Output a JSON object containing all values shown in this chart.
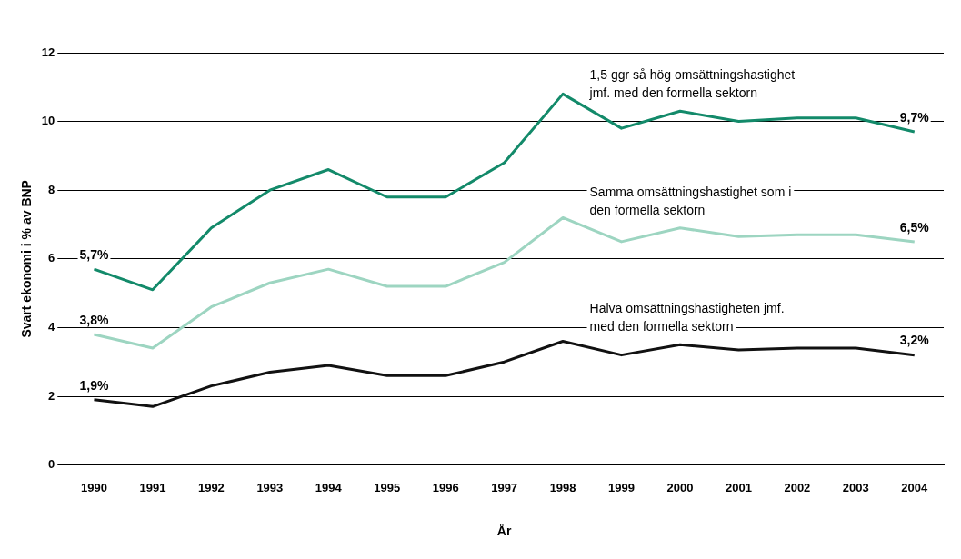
{
  "chart_data": {
    "type": "line",
    "xlabel": "År",
    "ylabel": "Svart ekonomi i % av BNP",
    "categories": [
      "1990",
      "1991",
      "1992",
      "1993",
      "1994",
      "1995",
      "1996",
      "1997",
      "1998",
      "1999",
      "2000",
      "2001",
      "2002",
      "2003",
      "2004"
    ],
    "series": [
      {
        "name": "1,5 ggr så hög omsättningshastighet jmf. med den formella sektorn",
        "color": "#138a6a",
        "values": [
          5.7,
          5.1,
          6.9,
          8.0,
          8.6,
          7.8,
          7.8,
          8.8,
          10.8,
          9.8,
          10.3,
          10.0,
          10.1,
          10.1,
          9.7
        ],
        "value_labels": [
          "5,7%",
          null,
          null,
          null,
          null,
          null,
          null,
          null,
          null,
          null,
          null,
          null,
          null,
          null,
          "9,7%"
        ]
      },
      {
        "name": "Samma omsättningshastighet som i den formella sektorn",
        "color": "#9dd5c1",
        "values": [
          3.8,
          3.4,
          4.6,
          5.3,
          5.7,
          5.2,
          5.2,
          5.9,
          7.2,
          6.5,
          6.9,
          6.65,
          6.7,
          6.7,
          6.5
        ],
        "value_labels": [
          "3,8%",
          null,
          null,
          null,
          null,
          null,
          null,
          null,
          null,
          null,
          null,
          null,
          null,
          null,
          "6,5%"
        ]
      },
      {
        "name": "Halva omsättningshastigheten jmf. med den formella sektorn",
        "color": "#111111",
        "values": [
          1.9,
          1.7,
          2.3,
          2.7,
          2.9,
          2.6,
          2.6,
          3.0,
          3.6,
          3.2,
          3.5,
          3.35,
          3.4,
          3.4,
          3.2
        ],
        "value_labels": [
          "1,9%",
          null,
          null,
          null,
          null,
          null,
          null,
          null,
          null,
          null,
          null,
          null,
          null,
          null,
          "3,2%"
        ]
      }
    ],
    "ylim": [
      0,
      12
    ],
    "yticks": [
      0,
      2,
      4,
      6,
      8,
      10,
      12
    ],
    "grid": "y",
    "legend": false,
    "marker": "none",
    "line_style": "solid"
  }
}
